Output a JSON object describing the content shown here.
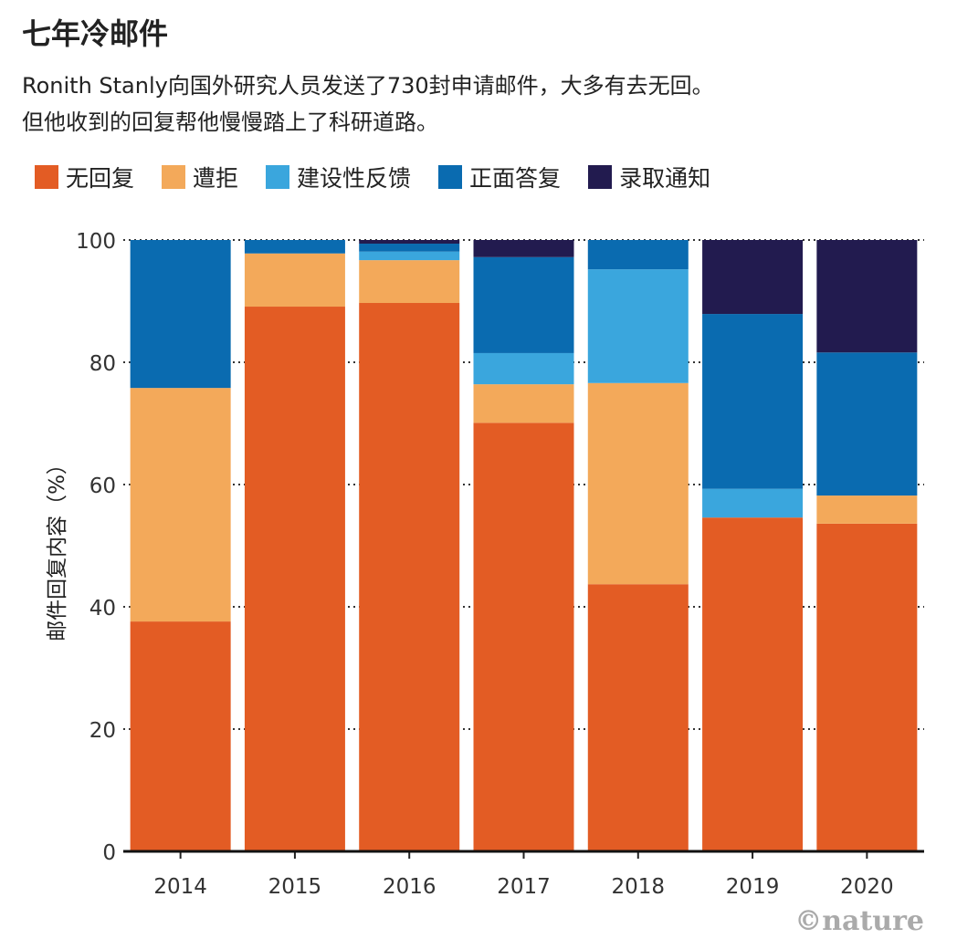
{
  "title": "七年冷邮件",
  "subtitle_lines": [
    "Ronith Stanly向国外研究人员发送了730封申请邮件，大多有去无回。",
    "但他收到的回复帮他慢慢踏上了科研道路。"
  ],
  "credit": "©nature",
  "chart_data": {
    "type": "bar",
    "stacked": true,
    "categories": [
      "2014",
      "2015",
      "2016",
      "2017",
      "2018",
      "2019",
      "2020"
    ],
    "ylabel": "邮件回复内容（%）",
    "ylim": [
      0,
      100
    ],
    "yticks": [
      0,
      20,
      40,
      60,
      80,
      100
    ],
    "grid": "horizontal dotted",
    "legend": "top",
    "series": [
      {
        "name": "无回复",
        "color": "#e35c24",
        "values": [
          37.6,
          89.1,
          89.7,
          70.1,
          43.7,
          54.6,
          53.6
        ]
      },
      {
        "name": "遭拒",
        "color": "#f3a95a",
        "values": [
          38.2,
          8.7,
          7.0,
          6.3,
          32.9,
          0,
          4.6
        ]
      },
      {
        "name": "建设性反馈",
        "color": "#3aa6dd",
        "values": [
          0,
          0,
          1.4,
          5.1,
          18.6,
          4.7,
          0
        ]
      },
      {
        "name": "正面答复",
        "color": "#0a6bb0",
        "values": [
          24.2,
          2.2,
          1.3,
          15.7,
          4.8,
          28.6,
          23.4
        ]
      },
      {
        "name": "录取通知",
        "color": "#221b4f",
        "values": [
          0,
          0,
          0.6,
          2.8,
          0,
          12.1,
          18.4
        ]
      }
    ]
  }
}
